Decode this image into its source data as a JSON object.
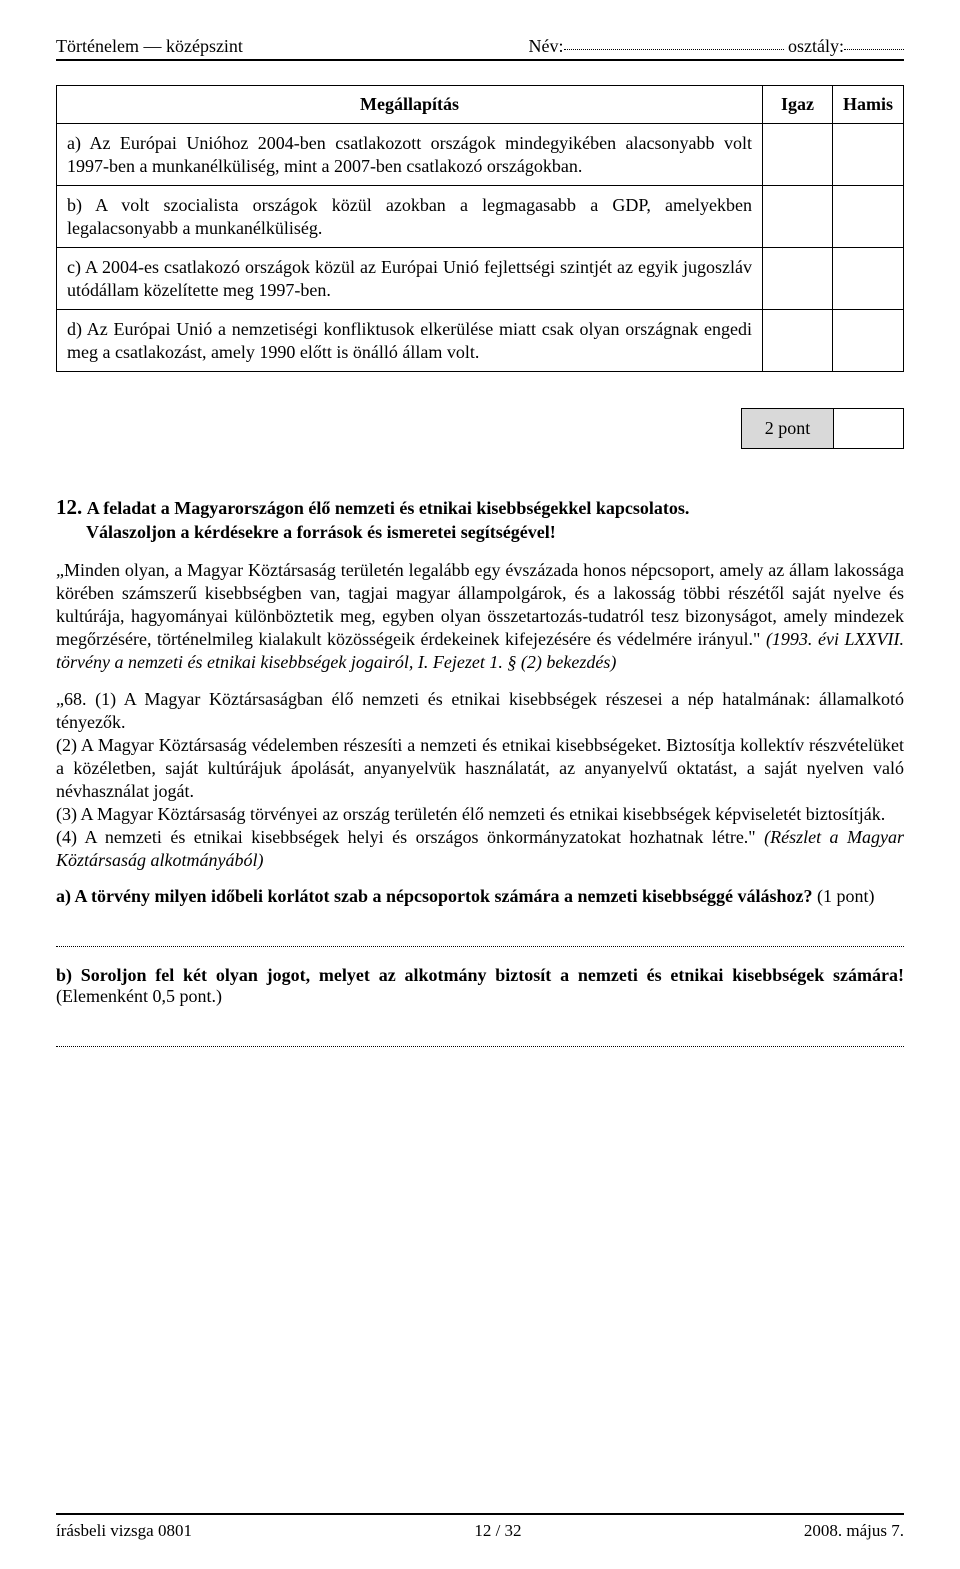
{
  "header": {
    "left": "Történelem — középszint",
    "name_label": "Név:",
    "class_label": "osztály:"
  },
  "truth_table": {
    "headers": {
      "stmt": "Megállapítás",
      "true": "Igaz",
      "false": "Hamis"
    },
    "rows": [
      {
        "text": "a) Az Európai Unióhoz 2004-ben csatlakozott országok mindegyikében alacsonyabb volt 1997-ben a munkanélküliség, mint a 2007-ben csatlakozó országokban."
      },
      {
        "text": "b) A volt szocialista országok közül azokban a legmagasabb a GDP, amelyekben legalacsonyabb  a munkanélküliség."
      },
      {
        "text": "c) A 2004-es csatlakozó országok közül az Európai Unió fejlettségi szintjét az egyik jugoszláv utódállam közelítette meg 1997-ben."
      },
      {
        "text": "d) Az Európai Unió a nemzetiségi konfliktusok elkerülése miatt csak olyan országnak engedi meg a csatlakozást, amely 1990 előtt is önálló állam volt."
      }
    ]
  },
  "points_box": {
    "label": "2 pont"
  },
  "task12": {
    "num": "12.",
    "title": "A feladat a Magyarországon élő nemzeti és etnikai kisebbségekkel kapcsolatos.",
    "subtitle": "Válaszoljon a kérdésekre a források és ismeretei segítségével!",
    "para1_main": "„Minden olyan, a Magyar Köztársaság területén legalább egy évszázada honos népcsoport, amely az állam lakossága körében számszerű kisebbségben van, tagjai magyar állampolgárok, és a lakosság többi részétől saját nyelve és kultúrája, hagyományai különböztetik meg, egyben olyan összetartozás-tudatról tesz bizonyságot, amely mindezek megőrzésére, történelmileg kialakult közösségeik érdekeinek kifejezésére és védelmére irányul.\" ",
    "para1_cite": "(1993. évi LXXVII. törvény a nemzeti és etnikai kisebbségek jogairól, I. Fejezet 1. § (2) bekezdés)",
    "para2_l1": "„68. (1) A Magyar Köztársaságban élő nemzeti és etnikai kisebbségek részesei a nép hatalmának: államalkotó tényezők.",
    "para2_l2": "(2) A Magyar Köztársaság védelemben részesíti a nemzeti és etnikai kisebbségeket. Biztosítja kollektív részvételüket a közéletben, saját kultúrájuk ápolását, anyanyelvük használatát, az anyanyelvű oktatást, a saját nyelven való névhasználat jogát.",
    "para2_l3": "(3) A Magyar Köztársaság törvényei az ország területén élő nemzeti és etnikai kisebbségek képviseletét biztosítják.",
    "para2_l4_a": "(4) A nemzeti és etnikai kisebbségek helyi és országos önkormányzatokat hozhatnak létre.\" ",
    "para2_l4_cite": "(Részlet a Magyar Köztársaság alkotmányából)",
    "qa_bold": "a) A törvény milyen időbeli korlátot szab a népcsoportok számára a nemzeti kisebbséggé váláshoz?",
    "qa_pts": " (1 pont)",
    "qb_bold": "b) Soroljon fel két olyan jogot, melyet az alkotmány biztosít a nemzeti és etnikai kisebbségek számára!",
    "qb_pts": " (Elemenként 0,5 pont.)"
  },
  "footer": {
    "left": "írásbeli vizsga 0801",
    "center": "12 / 32",
    "right": "2008. május 7."
  }
}
